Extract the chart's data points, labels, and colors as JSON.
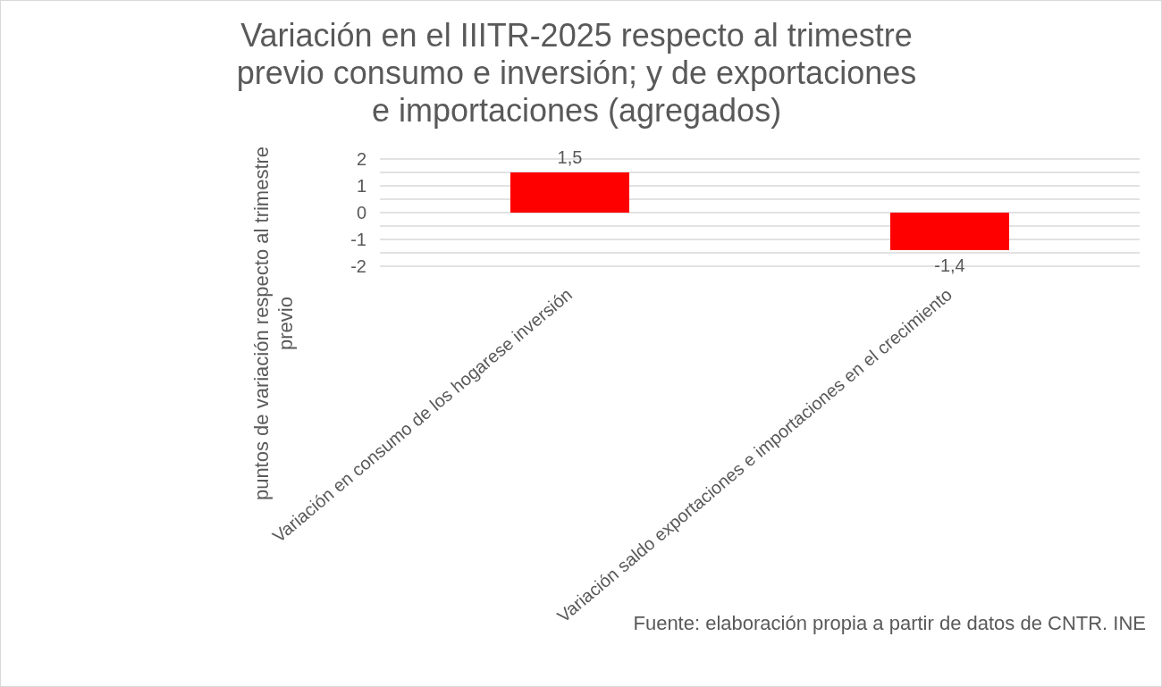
{
  "chart_data": {
    "type": "bar",
    "title": "Variación en el IIITR-2025 respecto al trimestre previo consumo e inversión; y de exportaciones e importaciones (agregados)",
    "ylabel": "puntos de variación respecto al trimestre previo",
    "categories": [
      "Variación en consumo de los hogarese inversión",
      "Variación saldo exportaciones e importaciones en el crecimiento"
    ],
    "values": [
      1.5,
      -1.4
    ],
    "color": "#ff0000",
    "value_labels": [
      "1,5",
      "-1,4"
    ],
    "ylim": [
      -2,
      2
    ],
    "yticks": [
      -2,
      {
        "value": -1.5,
        "label": null
      },
      -1,
      {
        "value": -0.5,
        "label": null
      },
      0,
      {
        "value": 0.5,
        "label": null
      },
      1,
      {
        "value": 1.5,
        "label": null
      },
      2
    ],
    "grid": "y",
    "annotations": [
      "Fuente: elaboración propia a partir de datos de CNTR. INE"
    ]
  }
}
